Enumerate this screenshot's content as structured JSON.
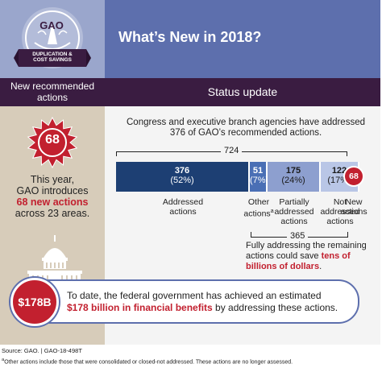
{
  "logo": {
    "org": "GAO",
    "banner_line1": "DUPLICATION &",
    "banner_line2": "COST SAVINGS"
  },
  "title": "What’s New in 2018?",
  "left_column": {
    "heading": "New recommended actions",
    "badge": "68",
    "intro_line1": "This year,",
    "intro_line2": "GAO introduces",
    "intro_highlight": "68 new actions",
    "intro_line4": "across 23 areas."
  },
  "right_column": {
    "heading": "Status update",
    "summary": "Congress and executive branch agencies have addressed 376 of GAO’s recommended actions.",
    "total": "724",
    "segments": [
      {
        "value": "376",
        "percent": "(52%)",
        "label_lines": [
          "Addressed",
          "actions"
        ],
        "color": "#1d3f73"
      },
      {
        "value": "51",
        "percent": "(7%)",
        "label_lines": [
          "Other",
          "actions"
        ],
        "label_sup": "a",
        "color": "#4a6fb5"
      },
      {
        "value": "175",
        "percent": "(24%)",
        "label_lines": [
          "Partially",
          "addressed",
          "actions"
        ],
        "color": "#8d9fcf"
      },
      {
        "value": "122",
        "percent": "(17%)",
        "label_lines": [
          "Not",
          "addressed",
          "actions"
        ],
        "color": "#b9c6e6"
      },
      {
        "value": "68",
        "percent": "",
        "label_lines": [
          "New",
          "actions"
        ],
        "color": "#c2202f"
      }
    ],
    "remaining_total": "365",
    "savings_text": "Fully addressing the remaining actions could save ",
    "savings_highlight": "tens of billions of dollars",
    "savings_end": "."
  },
  "callout": {
    "badge": "$178B",
    "text_start": "To date, the federal government has achieved an estimated ",
    "text_highlight": "$178 billion in financial benefits",
    "text_end": " by addressing these actions."
  },
  "source": "Source: GAO.  |  GAO-18-498T",
  "footnote": "aOther actions include those that were consolidated or closed-not addressed. These actions are no longer assessed.",
  "chart_data": {
    "type": "bar",
    "orientation": "horizontal-stacked",
    "title": "",
    "total": 724,
    "categories": [
      "Addressed actions",
      "Other actions",
      "Partially addressed actions",
      "Not addressed actions",
      "New actions"
    ],
    "values": [
      376,
      51,
      175,
      122,
      68
    ],
    "percents": [
      52,
      7,
      24,
      17,
      null
    ],
    "bracket_total_all": 724,
    "bracket_total_remaining": 365
  }
}
